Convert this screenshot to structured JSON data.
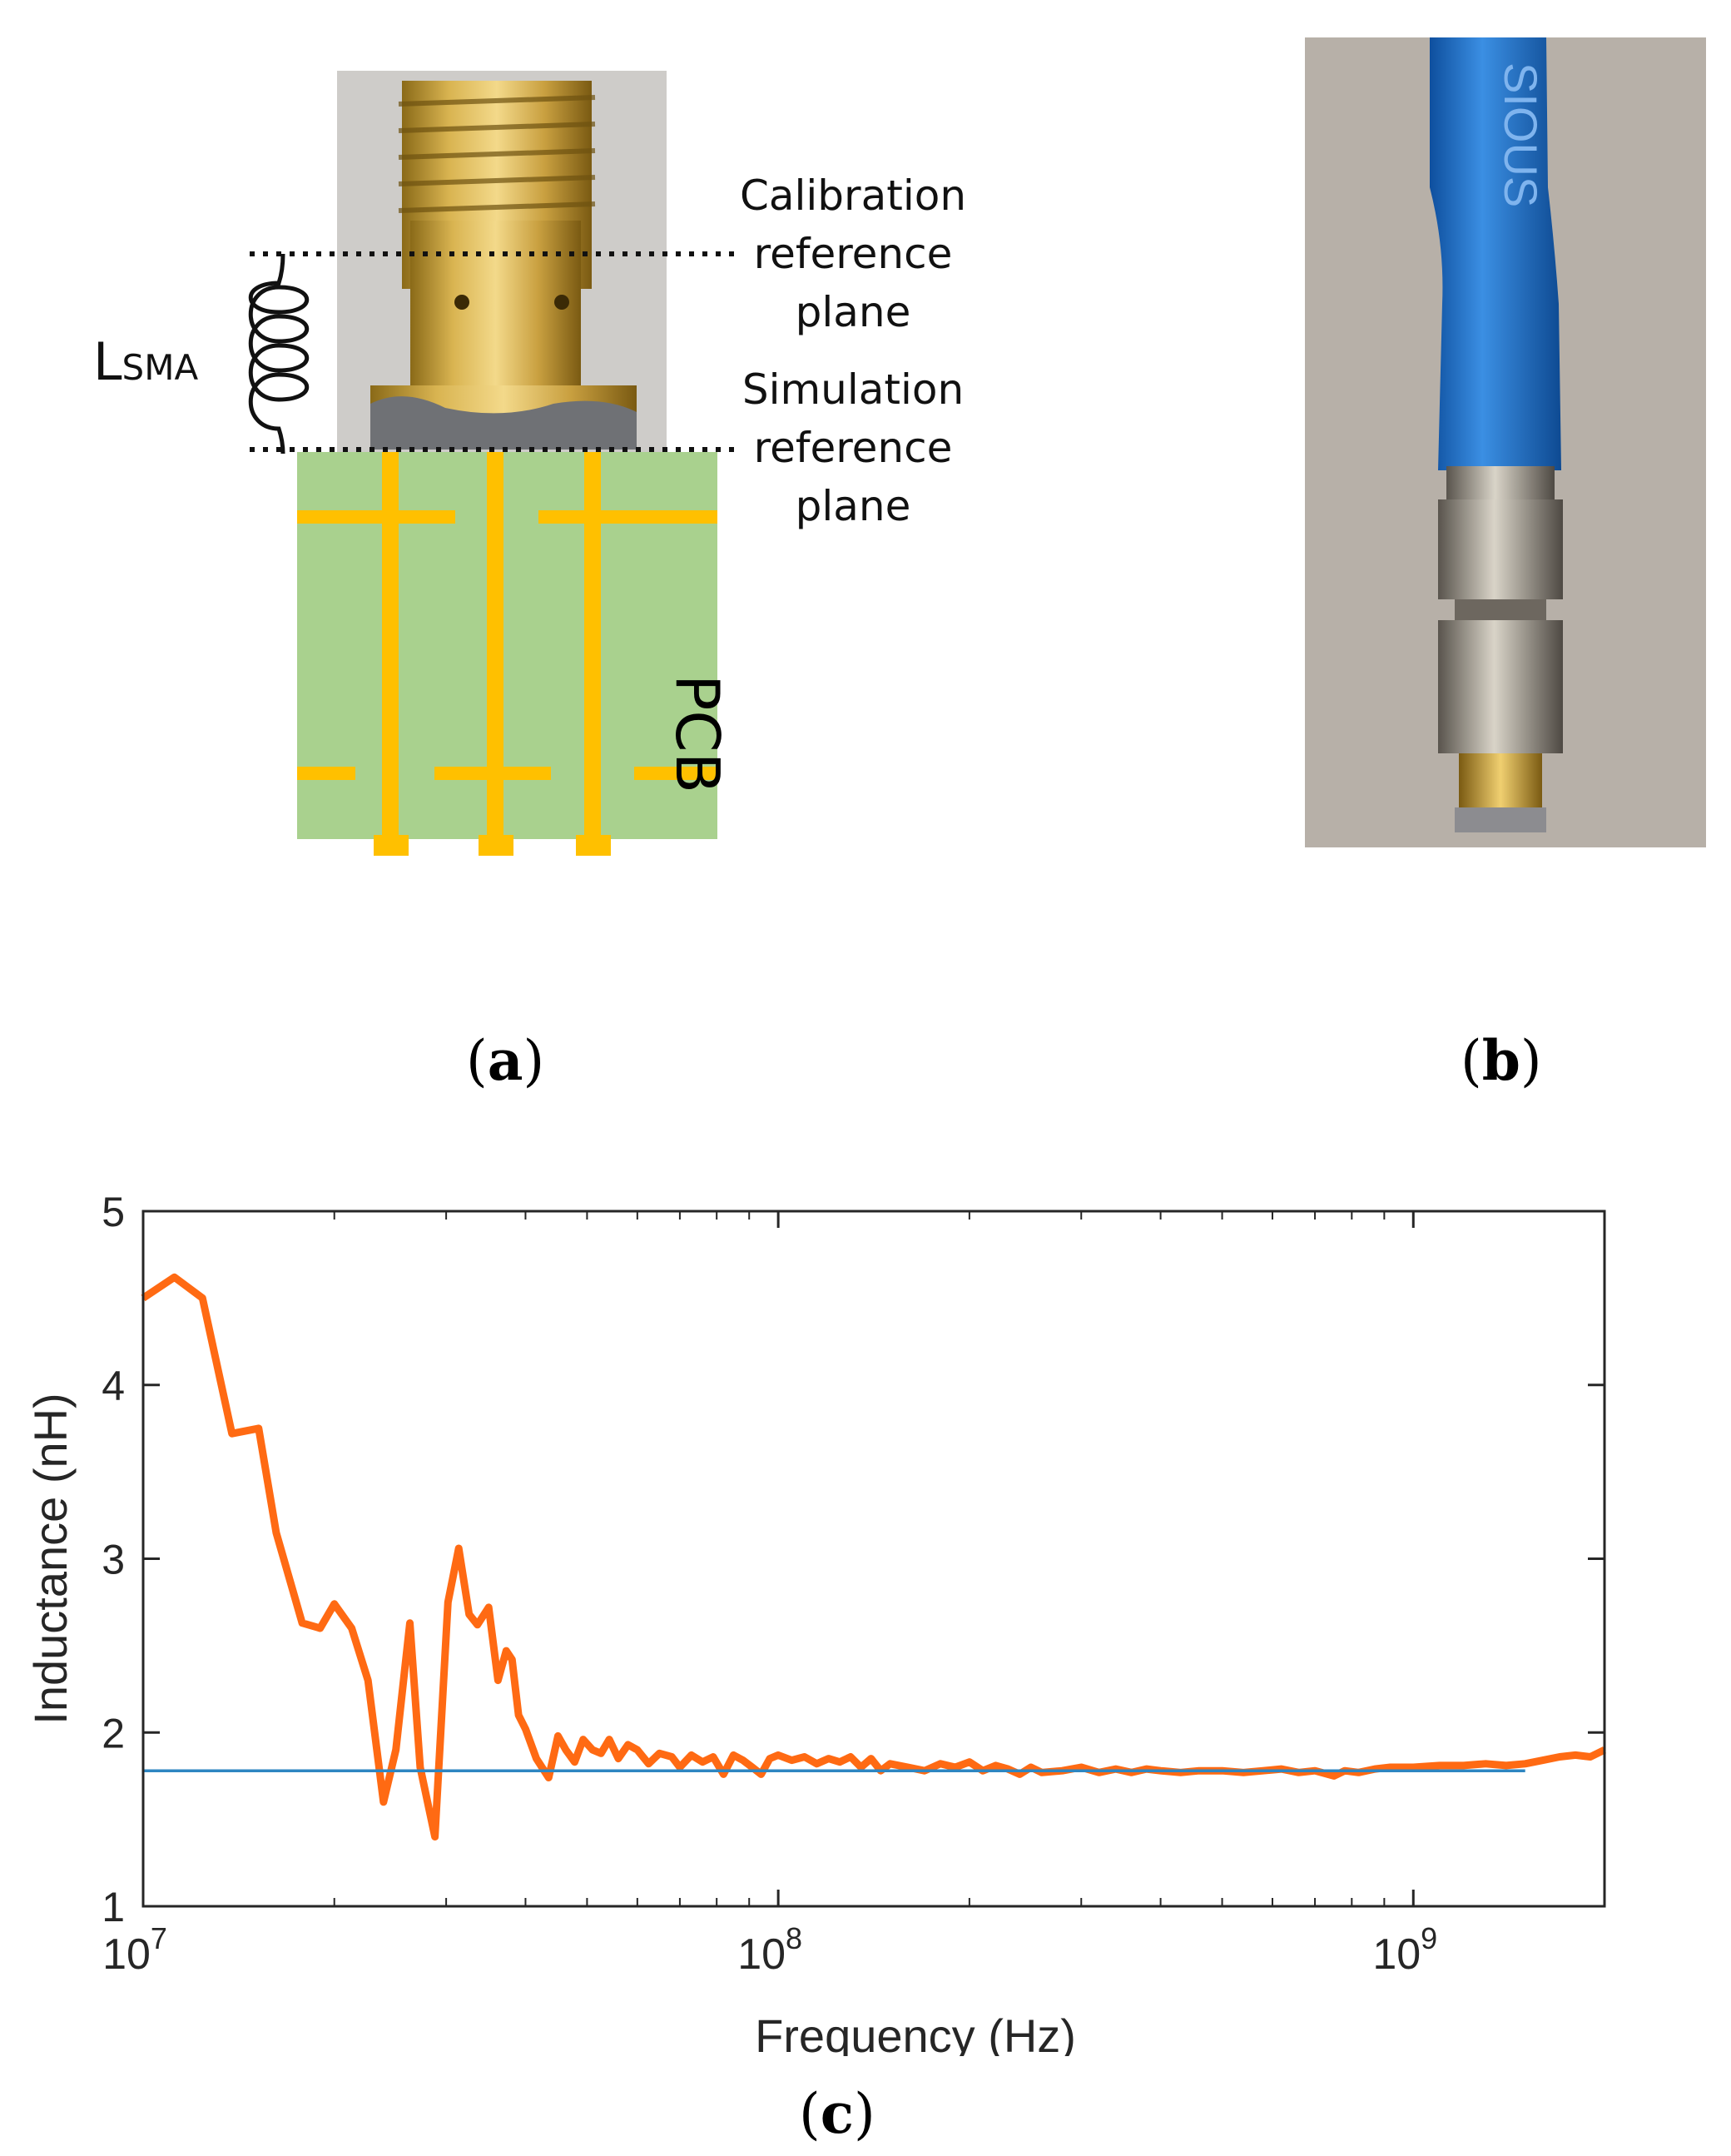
{
  "panel_a": {
    "label_L_main": "L",
    "label_L_sub": "SMA",
    "calibration_line1": "Calibration",
    "calibration_line2": "reference",
    "calibration_line3": "plane",
    "simulation_line1": "Simulation",
    "simulation_line2": "reference",
    "simulation_line3": "plane",
    "pcb_label": "PCB",
    "caption_letter": "a"
  },
  "panel_b": {
    "cable_text": "SIOUS",
    "caption_letter": "b"
  },
  "panel_c": {
    "caption_letter": "c"
  },
  "colors": {
    "measured_line": "#ff6a13",
    "reference_line": "#2e86c1",
    "pcb_green": "#a9d18e",
    "trace_gold": "#ffc000"
  },
  "chart_data": {
    "type": "line",
    "xscale": "log",
    "xlim": [
      10000000,
      2000000000
    ],
    "ylim": [
      1,
      5
    ],
    "xlabel": "Frequency (Hz)",
    "ylabel": "Inductance (nH)",
    "yticks": [
      "1",
      "2",
      "3",
      "4",
      "5"
    ],
    "xticks": [
      {
        "base": "10",
        "exp": "7"
      },
      {
        "base": "10",
        "exp": "8"
      },
      {
        "base": "10",
        "exp": "9"
      }
    ],
    "series": [
      {
        "color": "#ff6a13",
        "x": [
          10000000,
          11200000,
          12400000,
          13800000,
          15200000,
          16200000,
          17800000,
          19000000,
          20000000,
          21300000,
          22600000,
          23900000,
          25000000,
          26300000,
          27300000,
          28800000,
          30200000,
          31400000,
          32600000,
          33600000,
          35000000,
          36200000,
          37300000,
          38100000,
          39000000,
          40000000,
          41600000,
          43500000,
          45000000,
          46300000,
          47800000,
          49300000,
          51000000,
          52600000,
          54200000,
          56000000,
          58000000,
          60000000,
          62500000,
          65000000,
          68000000,
          70000000,
          73000000,
          76000000,
          79000000,
          82000000,
          85000000,
          88000000,
          91000000,
          94000000,
          97000000,
          100000000,
          105000000,
          110000000,
          115000000,
          120000000,
          125000000,
          130000000,
          135000000,
          140000000,
          145000000,
          150000000,
          160000000,
          170000000,
          180000000,
          190000000,
          200000000,
          210000000,
          220000000,
          230000000,
          240000000,
          250000000,
          260000000,
          280000000,
          300000000,
          320000000,
          340000000,
          360000000,
          380000000,
          400000000,
          430000000,
          460000000,
          500000000,
          540000000,
          580000000,
          620000000,
          660000000,
          700000000,
          750000000,
          780000000,
          820000000,
          870000000,
          920000000,
          1000000000,
          1100000000,
          1200000000,
          1300000000,
          1400000000,
          1500000000,
          1600000000,
          1700000000,
          1800000000,
          1900000000,
          2000000000
        ],
        "y": [
          4.5,
          4.62,
          4.5,
          3.72,
          3.75,
          3.15,
          2.63,
          2.6,
          2.74,
          2.6,
          2.3,
          1.6,
          1.9,
          2.63,
          1.8,
          1.4,
          2.75,
          3.06,
          2.68,
          2.62,
          2.72,
          2.3,
          2.47,
          2.42,
          2.1,
          2.02,
          1.85,
          1.74,
          1.98,
          1.9,
          1.83,
          1.96,
          1.9,
          1.88,
          1.96,
          1.85,
          1.93,
          1.9,
          1.82,
          1.88,
          1.86,
          1.8,
          1.87,
          1.83,
          1.86,
          1.76,
          1.87,
          1.84,
          1.8,
          1.76,
          1.85,
          1.87,
          1.84,
          1.86,
          1.82,
          1.85,
          1.83,
          1.86,
          1.8,
          1.85,
          1.78,
          1.82,
          1.8,
          1.78,
          1.82,
          1.8,
          1.83,
          1.78,
          1.81,
          1.79,
          1.76,
          1.8,
          1.77,
          1.78,
          1.8,
          1.77,
          1.79,
          1.77,
          1.79,
          1.78,
          1.77,
          1.78,
          1.78,
          1.77,
          1.78,
          1.79,
          1.77,
          1.78,
          1.75,
          1.78,
          1.77,
          1.79,
          1.8,
          1.8,
          1.81,
          1.81,
          1.82,
          1.81,
          1.82,
          1.84,
          1.86,
          1.87,
          1.86,
          1.9
        ]
      },
      {
        "color": "#2e86c1",
        "x": [
          10000000,
          1500000000
        ],
        "y": [
          1.78,
          1.78
        ]
      }
    ]
  }
}
